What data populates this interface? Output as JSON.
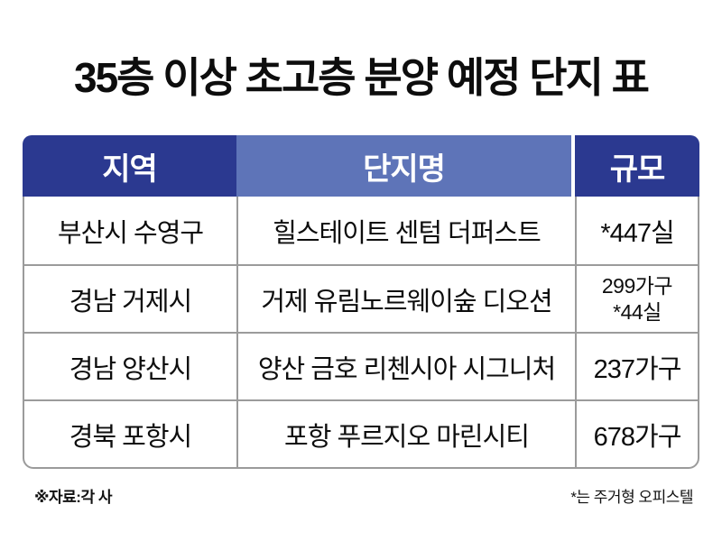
{
  "page": {
    "background": "#ffffff"
  },
  "chart_data": {
    "type": "table",
    "title": "35층 이상 초고층 분양 예정 단지 표",
    "columns": [
      {
        "key": "region",
        "label": "지역"
      },
      {
        "key": "complex_name",
        "label": "단지명"
      },
      {
        "key": "scale",
        "label": "규모"
      }
    ],
    "rows": [
      {
        "region": "부산시 수영구",
        "complex_name": "힐스테이트 센텀 더퍼스트",
        "scale_lines": [
          "*447실"
        ]
      },
      {
        "region": "경남 거제시",
        "complex_name": "거제 유림노르웨이숲 디오션",
        "scale_lines": [
          "299가구",
          "*44실"
        ]
      },
      {
        "region": "경남 양산시",
        "complex_name": "양산 금호 리첸시아 시그니처",
        "scale_lines": [
          "237가구"
        ]
      },
      {
        "region": "경북 포항시",
        "complex_name": "포항 푸르지오 마린시티",
        "scale_lines": [
          "678가구"
        ]
      }
    ],
    "footnotes": {
      "source": "※자료:각 사",
      "legend": "*는 주거형 오피스텔"
    },
    "colors": {
      "header_dark": "#2b3990",
      "header_light": "#5e74b8",
      "border_gray": "#9b9b9b",
      "header_text": "#ffffff",
      "body_text": "#0d0d0d"
    },
    "layout": {
      "legend_position": "none",
      "grid": "table-borders",
      "header_corner_radius_px": 10
    }
  }
}
